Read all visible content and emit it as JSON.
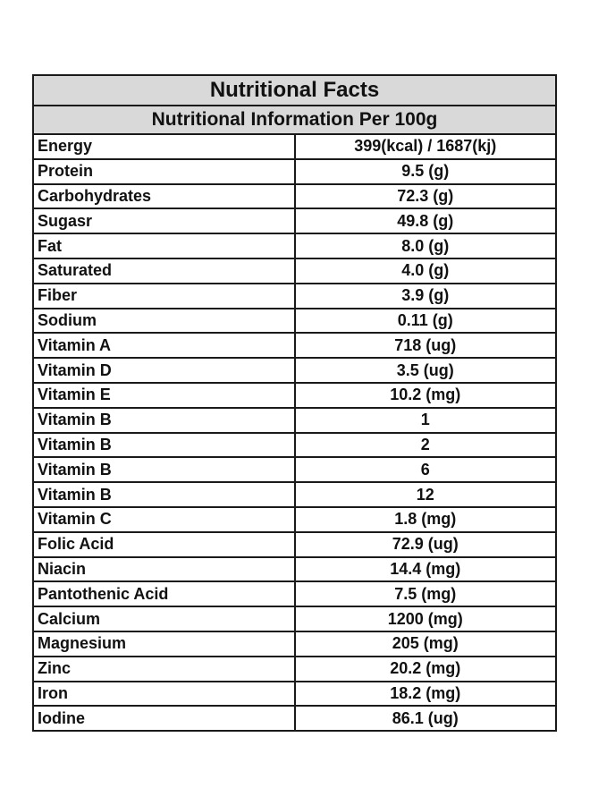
{
  "table": {
    "title": "Nutritional Facts",
    "subtitle": "Nutritional Information Per 100g",
    "rows": [
      {
        "name": "Energy",
        "value": "399(kcal) / 1687(kj)"
      },
      {
        "name": "Protein",
        "value": "9.5 (g)"
      },
      {
        "name": "Carbohydrates",
        "value": "72.3 (g)"
      },
      {
        "name": "Sugasr",
        "value": "49.8 (g)"
      },
      {
        "name": "Fat",
        "value": "8.0 (g)"
      },
      {
        "name": "Saturated",
        "value": "4.0 (g)"
      },
      {
        "name": "Fiber",
        "value": "3.9 (g)"
      },
      {
        "name": "Sodium",
        "value": "0.11 (g)"
      },
      {
        "name": "Vitamin A",
        "value": "718 (ug)"
      },
      {
        "name": "Vitamin D",
        "value": "3.5 (ug)"
      },
      {
        "name": "Vitamin E",
        "value": "10.2 (mg)"
      },
      {
        "name": "Vitamin B",
        "value": "1"
      },
      {
        "name": "Vitamin B",
        "value": "2"
      },
      {
        "name": "Vitamin B",
        "value": "6"
      },
      {
        "name": "Vitamin B",
        "value": "12"
      },
      {
        "name": "Vitamin C",
        "value": "1.8 (mg)"
      },
      {
        "name": "Folic Acid",
        "value": "72.9 (ug)"
      },
      {
        "name": "Niacin",
        "value": "14.4 (mg)"
      },
      {
        "name": "Pantothenic Acid",
        "value": "7.5 (mg)"
      },
      {
        "name": "Calcium",
        "value": "1200 (mg)"
      },
      {
        "name": "Magnesium",
        "value": "205 (mg)"
      },
      {
        "name": "Zinc",
        "value": "20.2 (mg)"
      },
      {
        "name": "Iron",
        "value": "18.2 (mg)"
      },
      {
        "name": "Iodine",
        "value": "86.1 (ug)"
      }
    ]
  },
  "colors": {
    "header_bg": "#d9d9d9",
    "border": "#1a1a1a",
    "text": "#111111"
  }
}
